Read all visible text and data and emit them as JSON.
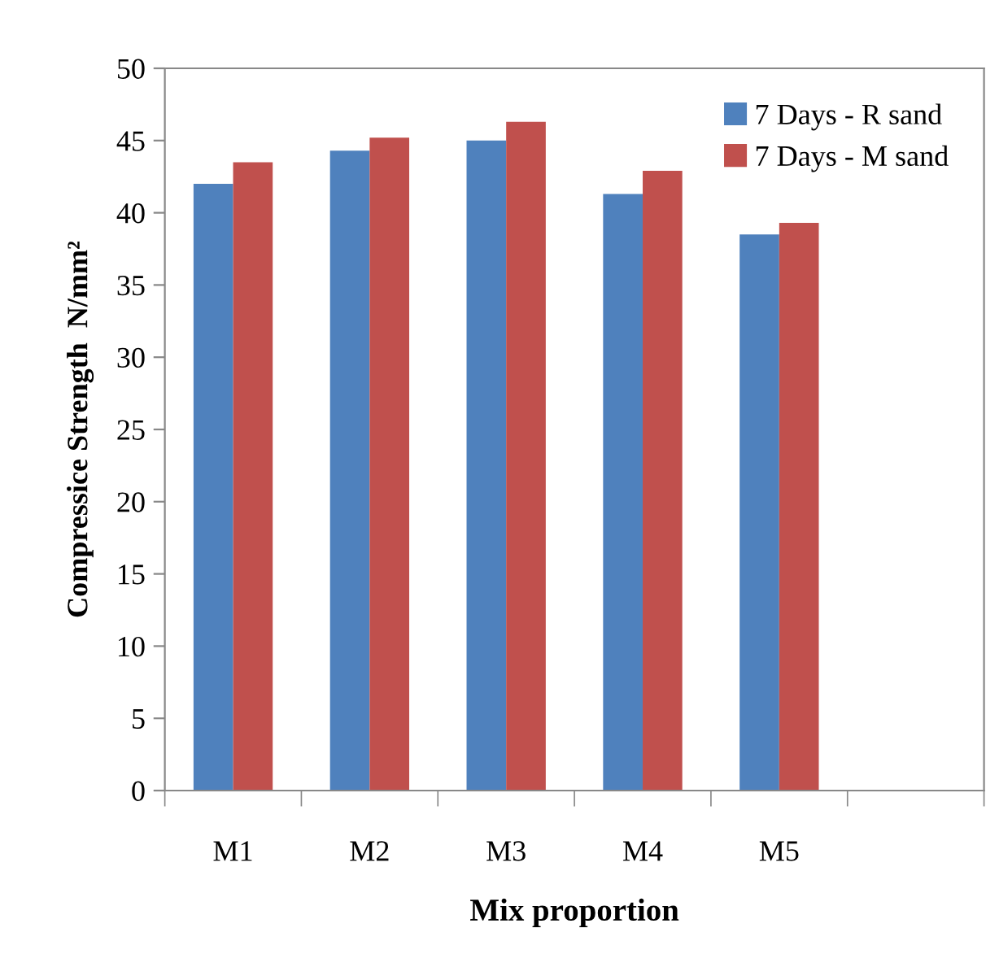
{
  "chart_data": {
    "type": "bar",
    "xlabel": "Mix proportion",
    "ylabel": "Compressice Strength  N/mm²",
    "categories": [
      "M1",
      "M2",
      "M3",
      "M4",
      "M5",
      null
    ],
    "series": [
      {
        "name": "7 Days - R sand",
        "color": "#4f81bd",
        "values": [
          42.0,
          44.3,
          45.0,
          41.3,
          38.5,
          null
        ]
      },
      {
        "name": "7 Days - M sand",
        "color": "#c0504d",
        "values": [
          43.5,
          45.2,
          46.3,
          42.9,
          39.3,
          null
        ]
      }
    ],
    "ylim": [
      0,
      50
    ],
    "yticks": [
      0,
      5,
      10,
      15,
      20,
      25,
      30,
      35,
      40,
      45,
      50
    ],
    "grid": false,
    "legend": "top right"
  }
}
